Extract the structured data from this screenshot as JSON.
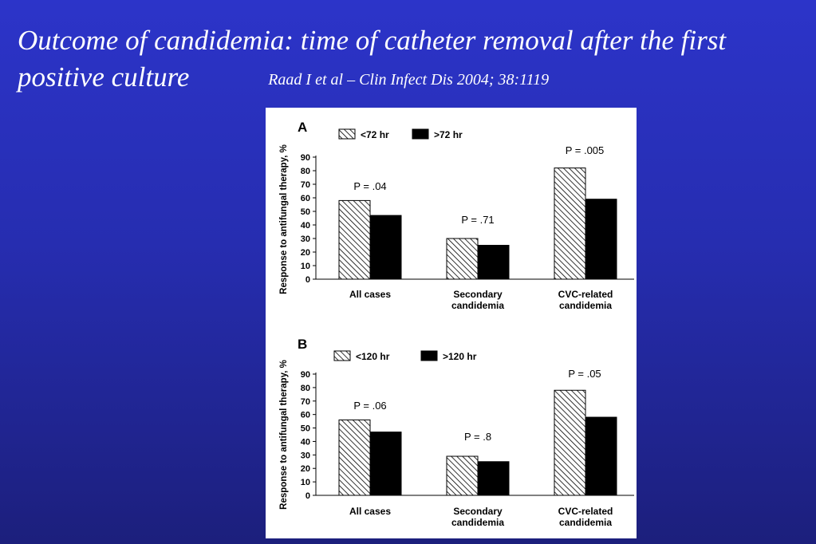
{
  "slide": {
    "title": "Outcome of candidemia: time of catheter removal after the first positive culture",
    "citation": "Raad I et al – Clin Infect Dis 2004; 38:1119"
  },
  "chart_data": [
    {
      "type": "bar",
      "panel_label": "A",
      "ylabel": "Response to antifungal therapy, %",
      "ylim": [
        0,
        90
      ],
      "yticks": [
        0,
        10,
        20,
        30,
        40,
        50,
        60,
        70,
        80,
        90
      ],
      "categories": [
        "All cases",
        "Secondary candidemia",
        "CVC-related candidemia"
      ],
      "category_lines": [
        [
          "All cases"
        ],
        [
          "Secondary",
          "candidemia"
        ],
        [
          "CVC-related",
          "candidemia"
        ]
      ],
      "series": [
        {
          "name": "<72 hr",
          "pattern": "hatched",
          "values": [
            58,
            30,
            82
          ]
        },
        {
          "name": ">72 hr",
          "pattern": "solid",
          "values": [
            47,
            25,
            59
          ]
        }
      ],
      "annotations": [
        "P = .04",
        "P = .71",
        "P = .005"
      ],
      "legend_position": "top-left",
      "grid": false
    },
    {
      "type": "bar",
      "panel_label": "B",
      "ylabel": "Response to antifungal therapy, %",
      "ylim": [
        0,
        90
      ],
      "yticks": [
        0,
        10,
        20,
        30,
        40,
        50,
        60,
        70,
        80,
        90
      ],
      "categories": [
        "All cases",
        "Secondary candidemia",
        "CVC-related candidemia"
      ],
      "category_lines": [
        [
          "All cases"
        ],
        [
          "Secondary",
          "candidemia"
        ],
        [
          "CVC-related",
          "candidemia"
        ]
      ],
      "series": [
        {
          "name": "<120 hr",
          "pattern": "hatched",
          "values": [
            56,
            29,
            78
          ]
        },
        {
          "name": ">120 hr",
          "pattern": "solid",
          "values": [
            47,
            25,
            58
          ]
        }
      ],
      "annotations": [
        "P = .06",
        "P = .8",
        "P = .05"
      ],
      "legend_position": "top-left",
      "grid": false
    }
  ]
}
